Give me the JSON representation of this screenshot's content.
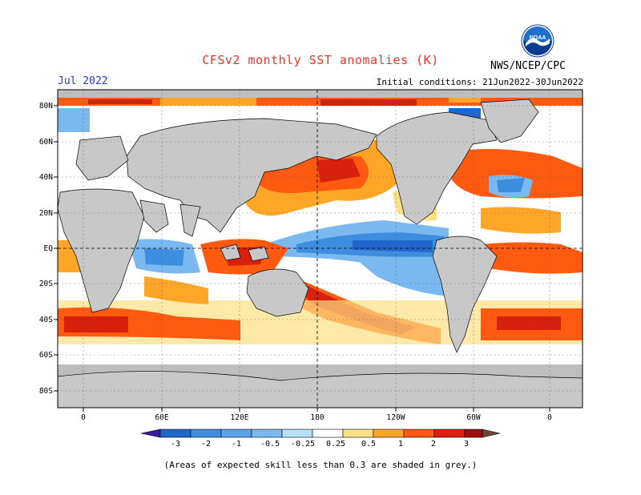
{
  "header": {
    "title": "CFSv2 monthly SST anomalies (K)",
    "agency": "NWS/NCEP/CPC",
    "month": "Jul 2022",
    "initial_conditions": "Initial conditions: 21Jun2022-30Jun2022"
  },
  "logo": {
    "icon": "noaa-logo",
    "text": "NOAA"
  },
  "map": {
    "lat_labels": [
      "80N",
      "60N",
      "40N",
      "20N",
      "EQ",
      "20S",
      "40S",
      "60S",
      "80S"
    ],
    "lon_labels": [
      "0",
      "60E",
      "120E",
      "180",
      "120W",
      "60W",
      "0"
    ],
    "land_color": "#c8c8c8",
    "skill_mask_color": "#bebebe"
  },
  "colorbar": {
    "labels": [
      "-3",
      "-2",
      "-1",
      "-0.5",
      "-0.25",
      "0.25",
      "0.5",
      "1",
      "2",
      "3"
    ],
    "colors": [
      "#3a1a9a",
      "#2166cc",
      "#3e8ee0",
      "#7ab8f0",
      "#b4e0f8",
      "#ffffff",
      "#ffe084",
      "#ffa628",
      "#ff5a10",
      "#d8200c",
      "#a00f0a",
      "#6e4636"
    ]
  },
  "note": "(Areas of expected skill less than 0.3 are shaded in grey.)"
}
